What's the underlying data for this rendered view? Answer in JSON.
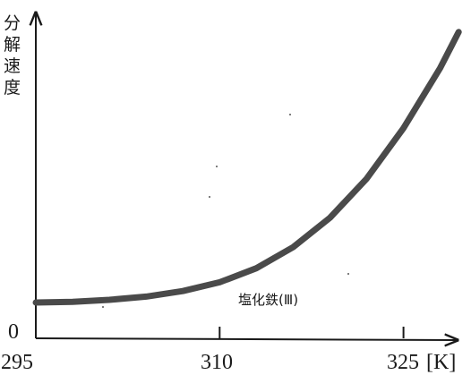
{
  "chart_data": {
    "type": "line",
    "xlabel": "",
    "ylabel": "分解速度",
    "xunit": "[K]",
    "origin_label": "0",
    "xlim": [
      295,
      330
    ],
    "ylim": [
      0,
      100
    ],
    "xticks": [
      310,
      325
    ],
    "xtick_labels": [
      "295",
      "310",
      "325"
    ],
    "series": [
      {
        "name": "塩化鉄(Ⅲ)",
        "x": [
          295,
          298,
          301,
          304,
          307,
          310,
          313,
          316,
          319,
          322,
          325,
          328,
          329.5
        ],
        "y": [
          11,
          11.2,
          11.8,
          12.8,
          14.5,
          17.2,
          21.5,
          28,
          37,
          49,
          64.5,
          83,
          94
        ]
      }
    ]
  },
  "colors": {
    "curve": "#4a4a4a",
    "axis": "#1a1a1a"
  }
}
